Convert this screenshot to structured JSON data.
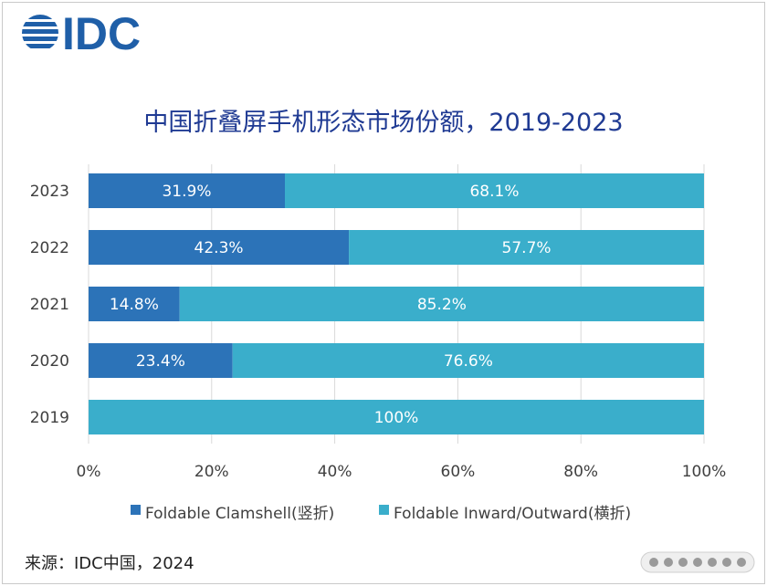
{
  "logo": {
    "text": "IDC"
  },
  "colors": {
    "clamshell": "#2c73b8",
    "inward_outward": "#3aaecb",
    "grid": "#d9d9d9"
  },
  "chart_data": {
    "type": "bar",
    "orientation": "horizontal",
    "stacked": true,
    "title": "中国折叠屏手机形态市场份额，2019-2023",
    "categories": [
      "2023",
      "2022",
      "2021",
      "2020",
      "2019"
    ],
    "series": [
      {
        "name": "Foldable Clamshell(竖折)",
        "values": [
          31.9,
          42.3,
          14.8,
          23.4,
          0
        ],
        "labels": [
          "31.9%",
          "42.3%",
          "14.8%",
          "23.4%",
          ""
        ]
      },
      {
        "name": "Foldable Inward/Outward(横折)",
        "values": [
          68.1,
          57.7,
          85.2,
          76.6,
          100
        ],
        "labels": [
          "68.1%",
          "57.7%",
          "85.2%",
          "76.6%",
          "100%"
        ]
      }
    ],
    "xticks": [
      "0%",
      "20%",
      "40%",
      "60%",
      "80%",
      "100%"
    ],
    "xlim": [
      0,
      100
    ],
    "grid": true,
    "legend_position": "bottom"
  },
  "source": "来源：IDC中国，2024"
}
